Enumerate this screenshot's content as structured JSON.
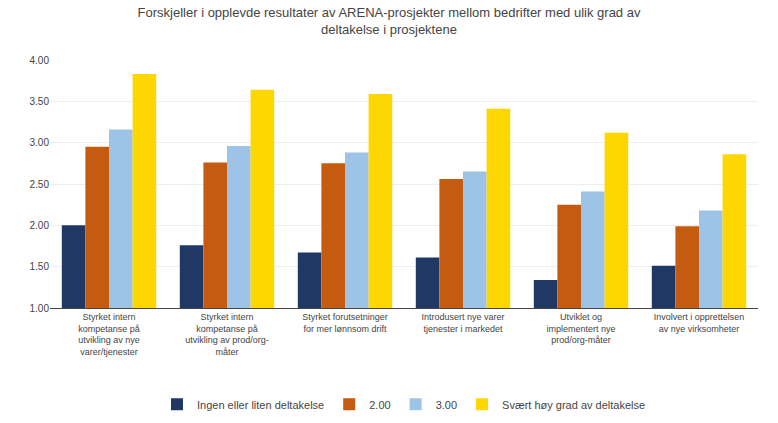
{
  "chart_data": {
    "type": "bar",
    "title": "Forskjeller i opplevde resultater av ARENA-prosjekter mellom bedrifter med ulik grad av\ndeltakelse i prosjektene",
    "categories": [
      "Styrket intern\nkompetanse på\nutvikling av nye\nvarer/tjenester",
      "Styrket intern\nkompetanse på\nutvikling av prod/org-\nmåter",
      "Styrket forutsetninger\nfor mer lønnsom drift",
      "Introdusert nye varer\ntjenester i markedet",
      "Utviklet og\nimplementert nye\nprod/org-måter",
      "Involvert i opprettelsen\nav nye virksomheter"
    ],
    "series": [
      {
        "name": "Ingen eller liten deltakelse",
        "color": "#1F3864",
        "values": [
          2.0,
          1.76,
          1.67,
          1.61,
          1.34,
          1.51
        ]
      },
      {
        "name": "2.00",
        "color": "#C55A11",
        "values": [
          2.95,
          2.76,
          2.75,
          2.56,
          2.25,
          1.99
        ]
      },
      {
        "name": "3.00",
        "color": "#9DC3E6",
        "values": [
          3.16,
          2.96,
          2.88,
          2.65,
          2.41,
          2.18
        ]
      },
      {
        "name": "Svært høy grad av deltakelse",
        "color": "#FFD700",
        "values": [
          3.83,
          3.64,
          3.59,
          3.41,
          3.12,
          2.86
        ]
      }
    ],
    "ylim": [
      1.0,
      4.0
    ],
    "yticks": [
      {
        "value": 1.0,
        "label": "1.00"
      },
      {
        "value": 1.5,
        "label": "1.50"
      },
      {
        "value": 2.0,
        "label": "2.00"
      },
      {
        "value": 2.5,
        "label": "2.50"
      },
      {
        "value": 3.0,
        "label": "3.00"
      },
      {
        "value": 3.5,
        "label": "3.50"
      },
      {
        "value": 4.0,
        "label": "4.00"
      }
    ],
    "grid": true,
    "legend": "bottom"
  }
}
